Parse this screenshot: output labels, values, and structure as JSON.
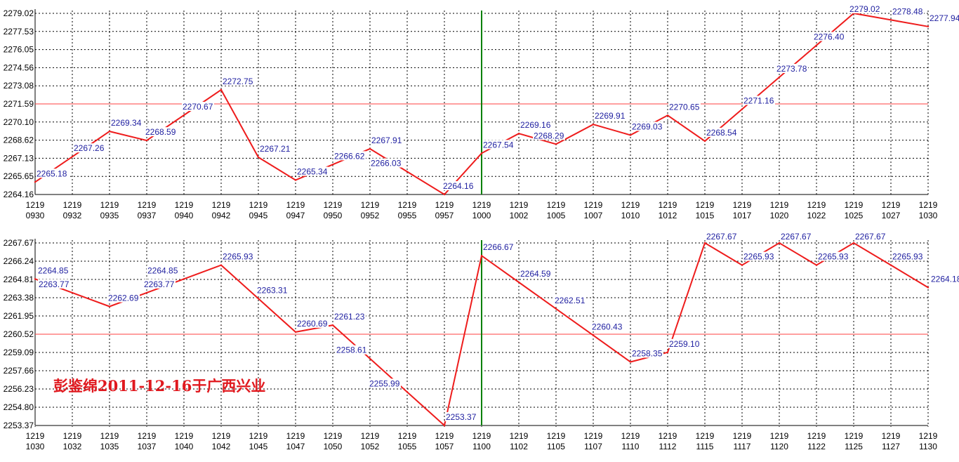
{
  "colors": {
    "line": "#ee1c1c",
    "ref_line": "#ff4040",
    "grid": "#000000",
    "divider": "#008000",
    "data_label": "#1f1fa0",
    "watermark": "#e0191f"
  },
  "watermark": "彭鉴绵2011-12-16于广西兴业",
  "chart_data": [
    {
      "type": "line",
      "title": "",
      "grid": true,
      "ylim": [
        2264.16,
        2279.02
      ],
      "y_ticks": [
        "2279.02",
        "2277.53",
        "2276.05",
        "2274.56",
        "2273.08",
        "2271.59",
        "2270.10",
        "2268.62",
        "2267.13",
        "2265.65",
        "2264.16"
      ],
      "reference_line": 2271.59,
      "divider_at": "1000",
      "x_ticks": [
        {
          "top": "1219",
          "bottom": "0930"
        },
        {
          "top": "1219",
          "bottom": "0932"
        },
        {
          "top": "1219",
          "bottom": "0935"
        },
        {
          "top": "1219",
          "bottom": "0937"
        },
        {
          "top": "1219",
          "bottom": "0940"
        },
        {
          "top": "1219",
          "bottom": "0942"
        },
        {
          "top": "1219",
          "bottom": "0945"
        },
        {
          "top": "1219",
          "bottom": "0947"
        },
        {
          "top": "1219",
          "bottom": "0950"
        },
        {
          "top": "1219",
          "bottom": "0952"
        },
        {
          "top": "1219",
          "bottom": "0955"
        },
        {
          "top": "1219",
          "bottom": "0957"
        },
        {
          "top": "1219",
          "bottom": "1000"
        },
        {
          "top": "1219",
          "bottom": "1002"
        },
        {
          "top": "1219",
          "bottom": "1005"
        },
        {
          "top": "1219",
          "bottom": "1007"
        },
        {
          "top": "1219",
          "bottom": "1010"
        },
        {
          "top": "1219",
          "bottom": "1012"
        },
        {
          "top": "1219",
          "bottom": "1015"
        },
        {
          "top": "1219",
          "bottom": "1017"
        },
        {
          "top": "1219",
          "bottom": "1020"
        },
        {
          "top": "1219",
          "bottom": "1022"
        },
        {
          "top": "1219",
          "bottom": "1025"
        },
        {
          "top": "1219",
          "bottom": "1027"
        },
        {
          "top": "1219",
          "bottom": "1030"
        }
      ],
      "points": [
        {
          "x": "0930",
          "y": 2265.18,
          "label": "2265.18"
        },
        {
          "x": "0932",
          "y": 2267.26,
          "label": "2267.26"
        },
        {
          "x": "0935",
          "y": 2269.34,
          "label": "2269.34"
        },
        {
          "x": "0937",
          "y": 2268.59,
          "label": "2268.59"
        },
        {
          "x": "0940",
          "y": 2270.67,
          "label": "2270.67"
        },
        {
          "x": "0942",
          "y": 2272.75,
          "label": "2272.75"
        },
        {
          "x": "0945",
          "y": 2267.21,
          "label": "2267.21"
        },
        {
          "x": "0947",
          "y": 2265.34,
          "label": "2265.34"
        },
        {
          "x": "0950",
          "y": 2266.62,
          "label": "2266.62"
        },
        {
          "x": "0952",
          "y": 2267.91,
          "label": "2267.91"
        },
        {
          "x": "0955",
          "y": 2266.03,
          "label": "2266.03"
        },
        {
          "x": "0957",
          "y": 2264.16,
          "label": "2264.16"
        },
        {
          "x": "1000",
          "y": 2267.54,
          "label": "2267.54"
        },
        {
          "x": "1002",
          "y": 2269.16,
          "label": "2269.16"
        },
        {
          "x": "1005",
          "y": 2268.29,
          "label": "2268.29"
        },
        {
          "x": "1007",
          "y": 2269.91,
          "label": "2269.91"
        },
        {
          "x": "1010",
          "y": 2269.03,
          "label": "2269.03"
        },
        {
          "x": "1012",
          "y": 2270.65,
          "label": "2270.65"
        },
        {
          "x": "1015",
          "y": 2268.54,
          "label": "2268.54"
        },
        {
          "x": "1017",
          "y": 2271.16,
          "label": "2271.16"
        },
        {
          "x": "1020",
          "y": 2273.78,
          "label": "2273.78"
        },
        {
          "x": "1022",
          "y": 2276.4,
          "label": "2276.40"
        },
        {
          "x": "1025",
          "y": 2279.02,
          "label": "2279.02"
        },
        {
          "x": "1027",
          "y": 2278.48,
          "label": "2278.48"
        },
        {
          "x": "1030",
          "y": 2277.94,
          "label": "2277.94"
        }
      ]
    },
    {
      "type": "line",
      "title": "",
      "grid": true,
      "ylim": [
        2253.37,
        2267.67
      ],
      "y_ticks": [
        "2267.67",
        "2266.24",
        "2264.81",
        "2263.38",
        "2261.95",
        "2260.52",
        "2259.09",
        "2257.66",
        "2256.23",
        "2254.80",
        "2253.37"
      ],
      "reference_line": 2260.52,
      "divider_at": "1100",
      "x_ticks": [
        {
          "top": "1219",
          "bottom": "1030"
        },
        {
          "top": "1219",
          "bottom": "1032"
        },
        {
          "top": "1219",
          "bottom": "1035"
        },
        {
          "top": "1219",
          "bottom": "1037"
        },
        {
          "top": "1219",
          "bottom": "1040"
        },
        {
          "top": "1219",
          "bottom": "1042"
        },
        {
          "top": "1219",
          "bottom": "1045"
        },
        {
          "top": "1219",
          "bottom": "1047"
        },
        {
          "top": "1219",
          "bottom": "1050"
        },
        {
          "top": "1219",
          "bottom": "1052"
        },
        {
          "top": "1219",
          "bottom": "1055"
        },
        {
          "top": "1219",
          "bottom": "1057"
        },
        {
          "top": "1219",
          "bottom": "1100"
        },
        {
          "top": "1219",
          "bottom": "1102"
        },
        {
          "top": "1219",
          "bottom": "1105"
        },
        {
          "top": "1219",
          "bottom": "1107"
        },
        {
          "top": "1219",
          "bottom": "1110"
        },
        {
          "top": "1219",
          "bottom": "1112"
        },
        {
          "top": "1219",
          "bottom": "1115"
        },
        {
          "top": "1219",
          "bottom": "1117"
        },
        {
          "top": "1219",
          "bottom": "1120"
        },
        {
          "top": "1219",
          "bottom": "1122"
        },
        {
          "top": "1219",
          "bottom": "1125"
        },
        {
          "top": "1219",
          "bottom": "1127"
        },
        {
          "top": "1219",
          "bottom": "1130"
        }
      ],
      "points": [
        {
          "x": "1030",
          "y": 2264.85,
          "label": "2264.85"
        },
        {
          "x": "1032",
          "y": 2263.77,
          "label": "2263.77"
        },
        {
          "x": "1035",
          "y": 2262.69,
          "label": "2262.69"
        },
        {
          "x": "1037",
          "y": 2263.77,
          "label": "2263.77"
        },
        {
          "x": "1040",
          "y": 2264.85,
          "label": "2264.85"
        },
        {
          "x": "1042",
          "y": 2265.93,
          "label": "2265.93"
        },
        {
          "x": "1045",
          "y": 2263.31,
          "label": "2263.31"
        },
        {
          "x": "1047",
          "y": 2260.69,
          "label": "2260.69"
        },
        {
          "x": "1050",
          "y": 2261.23,
          "label": "2261.23"
        },
        {
          "x": "1052",
          "y": 2258.61,
          "label": "2258.61"
        },
        {
          "x": "1055",
          "y": 2255.99,
          "label": "2255.99"
        },
        {
          "x": "1057",
          "y": 2253.37,
          "label": "2253.37"
        },
        {
          "x": "1100",
          "y": 2266.67,
          "label": "2266.67"
        },
        {
          "x": "1102",
          "y": 2264.59,
          "label": "2264.59"
        },
        {
          "x": "1105",
          "y": 2262.51,
          "label": "2262.51"
        },
        {
          "x": "1107",
          "y": 2260.43,
          "label": "2260.43"
        },
        {
          "x": "1110",
          "y": 2258.35,
          "label": "2258.35"
        },
        {
          "x": "1112",
          "y": 2259.1,
          "label": "2259.10"
        },
        {
          "x": "1115",
          "y": 2267.67,
          "label": "2267.67"
        },
        {
          "x": "1117",
          "y": 2265.93,
          "label": "2265.93"
        },
        {
          "x": "1120",
          "y": 2267.67,
          "label": "2267.67"
        },
        {
          "x": "1122",
          "y": 2265.93,
          "label": "2265.93"
        },
        {
          "x": "1125",
          "y": 2267.67,
          "label": "2267.67"
        },
        {
          "x": "1127",
          "y": 2265.93,
          "label": "2265.93"
        },
        {
          "x": "1130",
          "y": 2264.18,
          "label": "2264.18"
        }
      ]
    }
  ]
}
